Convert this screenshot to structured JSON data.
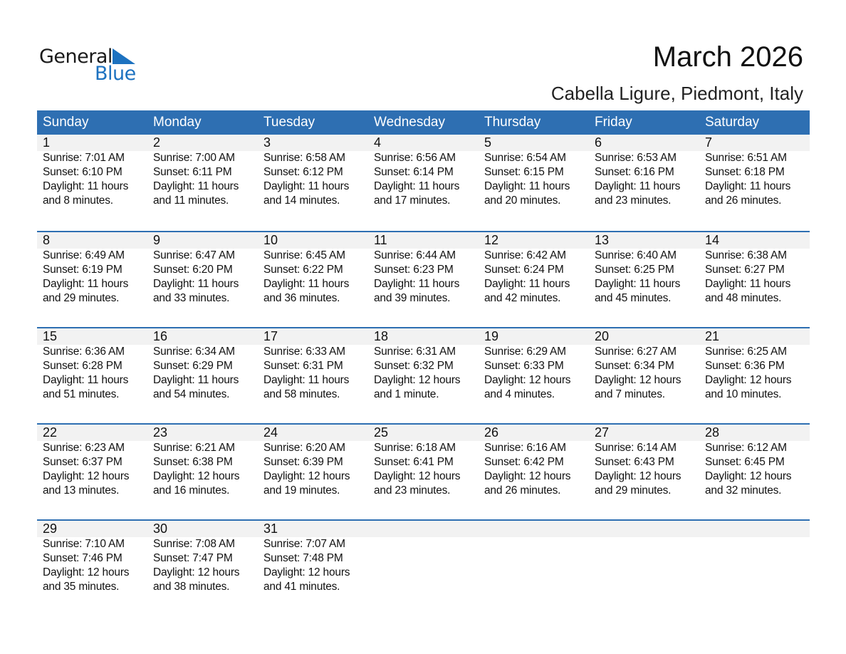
{
  "logo": {
    "text_general": "General",
    "text_blue": "Blue",
    "accent": "#1d72c0"
  },
  "title": "March 2026",
  "subtitle": "Cabella Ligure, Piedmont, Italy",
  "header_color": "#2e6fb2",
  "weekdays": [
    "Sunday",
    "Monday",
    "Tuesday",
    "Wednesday",
    "Thursday",
    "Friday",
    "Saturday"
  ],
  "start_weekday": 0,
  "days": [
    {
      "d": "1",
      "sunrise": "Sunrise: 7:01 AM",
      "sunset": "Sunset: 6:10 PM",
      "daylight": "Daylight: 11 hours",
      "minutes": "and 8 minutes."
    },
    {
      "d": "2",
      "sunrise": "Sunrise: 7:00 AM",
      "sunset": "Sunset: 6:11 PM",
      "daylight": "Daylight: 11 hours",
      "minutes": "and 11 minutes."
    },
    {
      "d": "3",
      "sunrise": "Sunrise: 6:58 AM",
      "sunset": "Sunset: 6:12 PM",
      "daylight": "Daylight: 11 hours",
      "minutes": "and 14 minutes."
    },
    {
      "d": "4",
      "sunrise": "Sunrise: 6:56 AM",
      "sunset": "Sunset: 6:14 PM",
      "daylight": "Daylight: 11 hours",
      "minutes": "and 17 minutes."
    },
    {
      "d": "5",
      "sunrise": "Sunrise: 6:54 AM",
      "sunset": "Sunset: 6:15 PM",
      "daylight": "Daylight: 11 hours",
      "minutes": "and 20 minutes."
    },
    {
      "d": "6",
      "sunrise": "Sunrise: 6:53 AM",
      "sunset": "Sunset: 6:16 PM",
      "daylight": "Daylight: 11 hours",
      "minutes": "and 23 minutes."
    },
    {
      "d": "7",
      "sunrise": "Sunrise: 6:51 AM",
      "sunset": "Sunset: 6:18 PM",
      "daylight": "Daylight: 11 hours",
      "minutes": "and 26 minutes."
    },
    {
      "d": "8",
      "sunrise": "Sunrise: 6:49 AM",
      "sunset": "Sunset: 6:19 PM",
      "daylight": "Daylight: 11 hours",
      "minutes": "and 29 minutes."
    },
    {
      "d": "9",
      "sunrise": "Sunrise: 6:47 AM",
      "sunset": "Sunset: 6:20 PM",
      "daylight": "Daylight: 11 hours",
      "minutes": "and 33 minutes."
    },
    {
      "d": "10",
      "sunrise": "Sunrise: 6:45 AM",
      "sunset": "Sunset: 6:22 PM",
      "daylight": "Daylight: 11 hours",
      "minutes": "and 36 minutes."
    },
    {
      "d": "11",
      "sunrise": "Sunrise: 6:44 AM",
      "sunset": "Sunset: 6:23 PM",
      "daylight": "Daylight: 11 hours",
      "minutes": "and 39 minutes."
    },
    {
      "d": "12",
      "sunrise": "Sunrise: 6:42 AM",
      "sunset": "Sunset: 6:24 PM",
      "daylight": "Daylight: 11 hours",
      "minutes": "and 42 minutes."
    },
    {
      "d": "13",
      "sunrise": "Sunrise: 6:40 AM",
      "sunset": "Sunset: 6:25 PM",
      "daylight": "Daylight: 11 hours",
      "minutes": "and 45 minutes."
    },
    {
      "d": "14",
      "sunrise": "Sunrise: 6:38 AM",
      "sunset": "Sunset: 6:27 PM",
      "daylight": "Daylight: 11 hours",
      "minutes": "and 48 minutes."
    },
    {
      "d": "15",
      "sunrise": "Sunrise: 6:36 AM",
      "sunset": "Sunset: 6:28 PM",
      "daylight": "Daylight: 11 hours",
      "minutes": "and 51 minutes."
    },
    {
      "d": "16",
      "sunrise": "Sunrise: 6:34 AM",
      "sunset": "Sunset: 6:29 PM",
      "daylight": "Daylight: 11 hours",
      "minutes": "and 54 minutes."
    },
    {
      "d": "17",
      "sunrise": "Sunrise: 6:33 AM",
      "sunset": "Sunset: 6:31 PM",
      "daylight": "Daylight: 11 hours",
      "minutes": "and 58 minutes."
    },
    {
      "d": "18",
      "sunrise": "Sunrise: 6:31 AM",
      "sunset": "Sunset: 6:32 PM",
      "daylight": "Daylight: 12 hours",
      "minutes": "and 1 minute."
    },
    {
      "d": "19",
      "sunrise": "Sunrise: 6:29 AM",
      "sunset": "Sunset: 6:33 PM",
      "daylight": "Daylight: 12 hours",
      "minutes": "and 4 minutes."
    },
    {
      "d": "20",
      "sunrise": "Sunrise: 6:27 AM",
      "sunset": "Sunset: 6:34 PM",
      "daylight": "Daylight: 12 hours",
      "minutes": "and 7 minutes."
    },
    {
      "d": "21",
      "sunrise": "Sunrise: 6:25 AM",
      "sunset": "Sunset: 6:36 PM",
      "daylight": "Daylight: 12 hours",
      "minutes": "and 10 minutes."
    },
    {
      "d": "22",
      "sunrise": "Sunrise: 6:23 AM",
      "sunset": "Sunset: 6:37 PM",
      "daylight": "Daylight: 12 hours",
      "minutes": "and 13 minutes."
    },
    {
      "d": "23",
      "sunrise": "Sunrise: 6:21 AM",
      "sunset": "Sunset: 6:38 PM",
      "daylight": "Daylight: 12 hours",
      "minutes": "and 16 minutes."
    },
    {
      "d": "24",
      "sunrise": "Sunrise: 6:20 AM",
      "sunset": "Sunset: 6:39 PM",
      "daylight": "Daylight: 12 hours",
      "minutes": "and 19 minutes."
    },
    {
      "d": "25",
      "sunrise": "Sunrise: 6:18 AM",
      "sunset": "Sunset: 6:41 PM",
      "daylight": "Daylight: 12 hours",
      "minutes": "and 23 minutes."
    },
    {
      "d": "26",
      "sunrise": "Sunrise: 6:16 AM",
      "sunset": "Sunset: 6:42 PM",
      "daylight": "Daylight: 12 hours",
      "minutes": "and 26 minutes."
    },
    {
      "d": "27",
      "sunrise": "Sunrise: 6:14 AM",
      "sunset": "Sunset: 6:43 PM",
      "daylight": "Daylight: 12 hours",
      "minutes": "and 29 minutes."
    },
    {
      "d": "28",
      "sunrise": "Sunrise: 6:12 AM",
      "sunset": "Sunset: 6:45 PM",
      "daylight": "Daylight: 12 hours",
      "minutes": "and 32 minutes."
    },
    {
      "d": "29",
      "sunrise": "Sunrise: 7:10 AM",
      "sunset": "Sunset: 7:46 PM",
      "daylight": "Daylight: 12 hours",
      "minutes": "and 35 minutes."
    },
    {
      "d": "30",
      "sunrise": "Sunrise: 7:08 AM",
      "sunset": "Sunset: 7:47 PM",
      "daylight": "Daylight: 12 hours",
      "minutes": "and 38 minutes."
    },
    {
      "d": "31",
      "sunrise": "Sunrise: 7:07 AM",
      "sunset": "Sunset: 7:48 PM",
      "daylight": "Daylight: 12 hours",
      "minutes": "and 41 minutes."
    }
  ]
}
